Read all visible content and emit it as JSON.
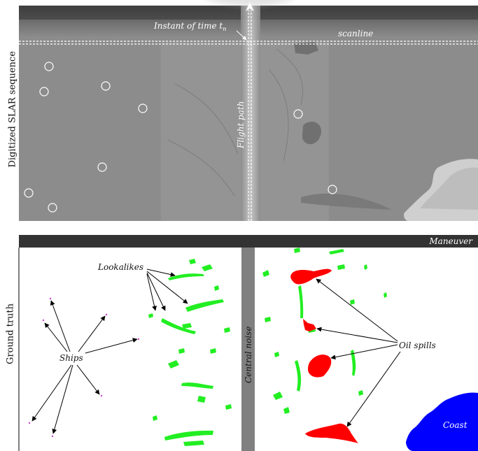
{
  "top_panel": {
    "side_label": "Digitized SLAR sequence",
    "instant_label": "Instant of time t",
    "instant_subscript": "n",
    "scanline_label": "scanline",
    "flight_path_label": "Flight path"
  },
  "bottom_panel": {
    "side_label": "Ground truth",
    "maneuver_label": "Maneuver",
    "lookalikes_label": "Lookalikes",
    "ships_label": "Ships",
    "central_noise_label": "Central noise",
    "oil_spills_label": "Oil spills",
    "coast_label": "Coast"
  },
  "colors": {
    "oil_spill": "#ff0000",
    "lookalike": "#22ee22",
    "coast": "#0000ff",
    "maneuver_bar": "#333333",
    "central_noise": "#808080",
    "sar_background": "#8c8c8c"
  }
}
